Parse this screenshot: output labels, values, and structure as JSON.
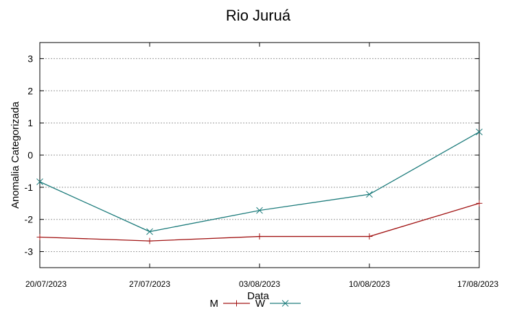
{
  "chart_data": {
    "type": "line",
    "title": "Rio Juruá",
    "xlabel": "Data",
    "ylabel": "Anomalia Categorizada",
    "categories": [
      "20/07/2023",
      "27/07/2023",
      "03/08/2023",
      "10/08/2023",
      "17/08/2023"
    ],
    "ylim": [
      -3.5,
      3.5
    ],
    "yticks": [
      -3,
      -2,
      -1,
      0,
      1,
      2,
      3
    ],
    "grid": true,
    "legend_position": "bottom-center",
    "series": [
      {
        "name": "M",
        "color": "#a01010",
        "marker": "plus",
        "values": [
          -2.55,
          -2.67,
          -2.53,
          -2.53,
          -1.5
        ]
      },
      {
        "name": "W",
        "color": "#1a7a7a",
        "marker": "x",
        "values": [
          -0.83,
          -2.38,
          -1.72,
          -1.22,
          0.72
        ]
      }
    ]
  }
}
